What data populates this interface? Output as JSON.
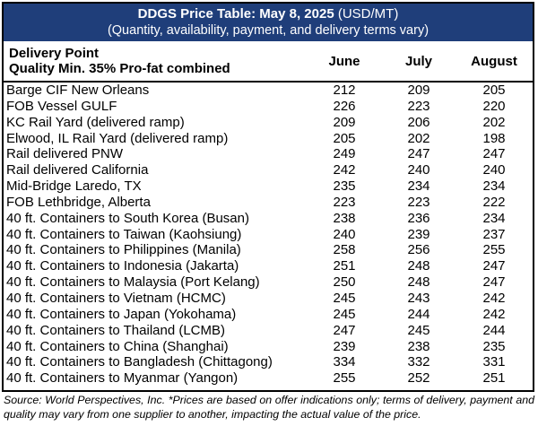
{
  "colors": {
    "title_bg": "#1f3e7a",
    "header_bg": "#ffffff",
    "row_odd_bg": "#ffffff",
    "row_even_bg": "#ffffff",
    "border": "#000000"
  },
  "title": {
    "main": "DDGS Price Table: May 8, 2025",
    "unit": " (USD/MT)",
    "subtitle": "(Quantity, availability, payment, and delivery terms vary)"
  },
  "header": {
    "point_line1": "Delivery Point",
    "point_line2": "Quality Min. 35% Pro-fat combined",
    "months": [
      "June",
      "July",
      "August"
    ]
  },
  "rows": [
    {
      "point": "Barge CIF New Orleans",
      "june": "212",
      "july": "209",
      "august": "205"
    },
    {
      "point": "FOB Vessel GULF",
      "june": "226",
      "july": "223",
      "august": "220"
    },
    {
      "point": "KC Rail Yard (delivered ramp)",
      "june": "209",
      "july": "206",
      "august": "202"
    },
    {
      "point": "Elwood, IL Rail Yard (delivered ramp)",
      "june": "205",
      "july": "202",
      "august": "198"
    },
    {
      "point": "Rail delivered PNW",
      "june": "249",
      "july": "247",
      "august": "247"
    },
    {
      "point": "Rail delivered California",
      "june": "242",
      "july": "240",
      "august": "240"
    },
    {
      "point": "Mid-Bridge Laredo, TX",
      "june": "235",
      "july": "234",
      "august": "234"
    },
    {
      "point": "FOB Lethbridge, Alberta",
      "june": "223",
      "july": "223",
      "august": "222"
    },
    {
      "point": "40 ft. Containers to South Korea (Busan)",
      "june": "238",
      "july": "236",
      "august": "234"
    },
    {
      "point": "40 ft. Containers to Taiwan (Kaohsiung)",
      "june": "240",
      "july": "239",
      "august": "237"
    },
    {
      "point": "40 ft. Containers to Philippines (Manila)",
      "june": "258",
      "july": "256",
      "august": "255"
    },
    {
      "point": "40 ft. Containers to Indonesia (Jakarta)",
      "june": "251",
      "july": "248",
      "august": "247"
    },
    {
      "point": "40 ft. Containers to Malaysia (Port Kelang)",
      "june": "250",
      "july": "248",
      "august": "247"
    },
    {
      "point": "40 ft. Containers to Vietnam (HCMC)",
      "june": "245",
      "july": "243",
      "august": "242"
    },
    {
      "point": "40 ft. Containers to Japan (Yokohama)",
      "june": "245",
      "july": "244",
      "august": "242"
    },
    {
      "point": "40 ft. Containers to Thailand (LCMB)",
      "june": "247",
      "july": "245",
      "august": "244"
    },
    {
      "point": "40 ft. Containers to China (Shanghai)",
      "june": "239",
      "july": "238",
      "august": "235"
    },
    {
      "point": "40 ft. Containers to Bangladesh (Chittagong)",
      "june": "334",
      "july": "332",
      "august": "331"
    },
    {
      "point": "40 ft. Containers to Myanmar (Yangon)",
      "june": "255",
      "july": "252",
      "august": "251"
    }
  ],
  "footer": {
    "source": "Source: World Perspectives, Inc. *Prices are based on offer indications only; terms of delivery, payment and quality may vary from one supplier to another, impacting the actual value of the price."
  }
}
